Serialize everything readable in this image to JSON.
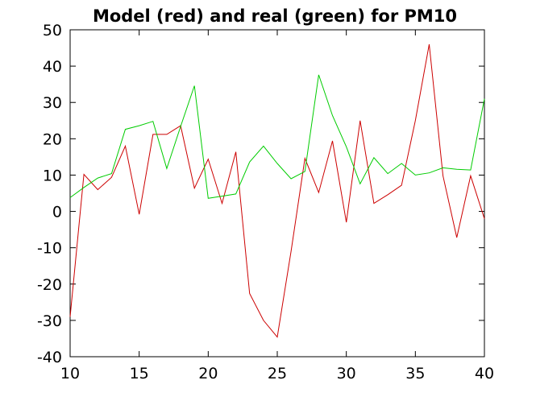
{
  "chart_data": {
    "type": "line",
    "title": "Model (red) and real (green) for PM10",
    "xlabel": "",
    "ylabel": "",
    "xlim": [
      10,
      40
    ],
    "ylim": [
      -40,
      50
    ],
    "grid": false,
    "legend": "none",
    "x_ticks": [
      "10",
      "15",
      "20",
      "25",
      "30",
      "35",
      "40"
    ],
    "y_ticks": [
      "50",
      "40",
      "30",
      "20",
      "10",
      "0",
      "-10",
      "-20",
      "-30",
      "-40"
    ],
    "x": [
      10,
      11,
      12,
      13,
      14,
      15,
      16,
      17,
      18,
      19,
      20,
      21,
      22,
      23,
      24,
      25,
      26,
      27,
      28,
      29,
      30,
      31,
      32,
      33,
      34,
      35,
      36,
      37,
      38,
      39,
      40
    ],
    "series": [
      {
        "color": "#cc0000",
        "values": [
          -29,
          10.2,
          6,
          9.4,
          18,
          -0.8,
          21.2,
          21.2,
          23.6,
          6.4,
          14.4,
          2.2,
          16.4,
          -22.6,
          -30,
          -34.6,
          -11,
          14.6,
          5.2,
          19.4,
          -3,
          25,
          2.2,
          4.6,
          7.2,
          25,
          46,
          9.8,
          -7.2,
          9.8,
          -2
        ],
        "x": [
          10,
          11,
          12,
          13,
          14,
          15,
          16,
          17,
          18,
          19,
          20,
          21,
          22,
          23,
          24,
          25,
          26,
          27,
          28,
          29,
          30,
          31,
          32,
          33,
          34,
          35,
          36,
          37,
          38,
          39,
          40
        ]
      },
      {
        "color": "#00cc00",
        "values": [
          3.8,
          6.6,
          9.2,
          10.4,
          22.6,
          23.6,
          24.8,
          11.8,
          23.4,
          34.6,
          3.6,
          4.2,
          4.8,
          13.6,
          18,
          13.2,
          9,
          11,
          37.6,
          26.4,
          17.8,
          7.6,
          14.8,
          10.4,
          13.2,
          10,
          10.6,
          12,
          11.6,
          11.4,
          31
        ],
        "x": [
          10,
          11,
          12,
          13,
          14,
          15,
          16,
          17,
          18,
          19,
          20,
          21,
          22,
          23,
          24,
          25,
          26,
          27,
          28,
          29,
          30,
          31,
          32,
          33,
          34,
          35,
          36,
          37,
          38,
          39,
          40
        ]
      }
    ]
  }
}
